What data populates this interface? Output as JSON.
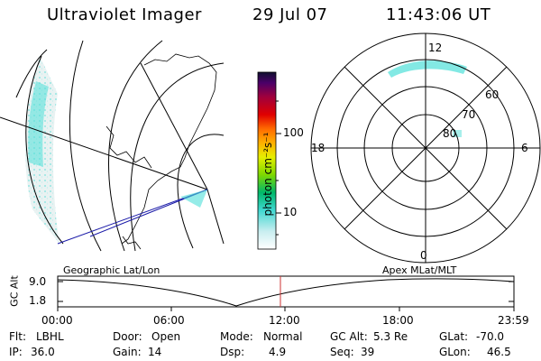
{
  "header": {
    "instrument": "Ultraviolet Imager",
    "date": "29 Jul 07",
    "time": "11:43:06 UT"
  },
  "colorbar": {
    "unit_label": "photon cm⁻²s⁻¹",
    "ticks": [
      "100",
      "10"
    ]
  },
  "polar_plot": {
    "mlt_labels": {
      "top": "12",
      "left": "18",
      "right": "6",
      "bottom": "0"
    },
    "lat_labels": [
      "60",
      "70",
      "80"
    ]
  },
  "timeline": {
    "left_caption": "Geographic Lat/Lon",
    "right_caption": "Apex MLat/MLT",
    "axis_label": "GC Alt",
    "y_ticks": [
      "9.0",
      "1.8"
    ],
    "x_ticks": [
      "00:00",
      "06:00",
      "12:00",
      "18:00",
      "23:59"
    ],
    "marker_time": "11:43"
  },
  "status": {
    "row1": [
      {
        "key": "Flt:",
        "value": "LBHL"
      },
      {
        "key": "Door:",
        "value": "Open"
      },
      {
        "key": "Mode:",
        "value": "Normal"
      },
      {
        "key": "GC Alt:",
        "value": "5.3 Re"
      },
      {
        "key": "GLat:",
        "value": "-70.0"
      }
    ],
    "row2": [
      {
        "key": "IP:",
        "value": "36.0"
      },
      {
        "key": "Gain:",
        "value": "14"
      },
      {
        "key": "Dsp:",
        "value": "4.9"
      },
      {
        "key": "Seq:",
        "value": "39"
      },
      {
        "key": "GLon:",
        "value": "46.5"
      }
    ]
  },
  "colors": {
    "aurora": "#4fe0d8",
    "track": "#1a1aa8",
    "marker": "#cc3333"
  }
}
